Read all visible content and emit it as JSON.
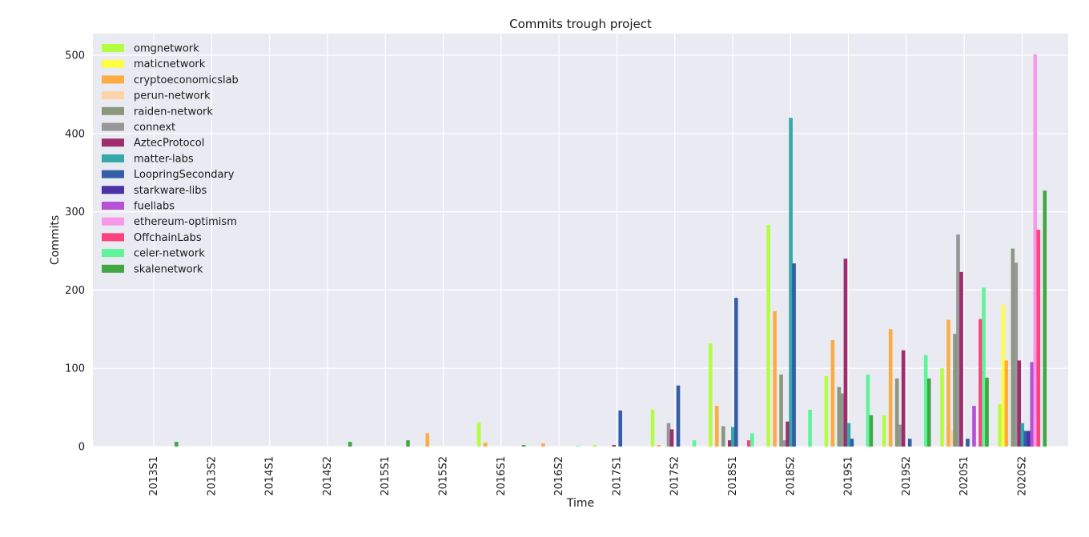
{
  "chart_data": {
    "type": "bar",
    "title": "Commits trough project",
    "xlabel": "Time",
    "ylabel": "Commits",
    "ylim": [
      0,
      525
    ],
    "yticks": [
      0,
      100,
      200,
      300,
      400,
      500
    ],
    "grid": true,
    "legend_position": "top-left",
    "categories": [
      "2013S1",
      "2013S2",
      "2014S1",
      "2014S2",
      "2015S1",
      "2015S2",
      "2016S1",
      "2016S2",
      "2017S1",
      "2017S2",
      "2018S1",
      "2018S2",
      "2019S1",
      "2019S2",
      "2020S1",
      "2020S2"
    ],
    "series": [
      {
        "name": "omgnetwork",
        "color": "#adff2f",
        "values": [
          0,
          0,
          0,
          0,
          0,
          0,
          31,
          0,
          2,
          47,
          132,
          283,
          90,
          40,
          100,
          54
        ]
      },
      {
        "name": "maticnetwork",
        "color": "#ffff33",
        "values": [
          0,
          0,
          0,
          0,
          0,
          0,
          0,
          0,
          0,
          0,
          0,
          0,
          0,
          0,
          0,
          181
        ]
      },
      {
        "name": "cryptoeconomicslab",
        "color": "#ffa530",
        "values": [
          0,
          0,
          0,
          0,
          0,
          17,
          5,
          4,
          0,
          2,
          52,
          173,
          136,
          150,
          162,
          110
        ]
      },
      {
        "name": "perun-network",
        "color": "#ffd1a0",
        "values": [
          0,
          0,
          0,
          0,
          0,
          0,
          0,
          0,
          0,
          0,
          0,
          0,
          0,
          0,
          20,
          0
        ]
      },
      {
        "name": "raiden-network",
        "color": "#809070",
        "values": [
          0,
          0,
          0,
          0,
          0,
          0,
          0,
          0,
          0,
          0,
          26,
          92,
          76,
          87,
          144,
          253
        ]
      },
      {
        "name": "connext",
        "color": "#8e8e8e",
        "values": [
          0,
          0,
          0,
          0,
          0,
          0,
          0,
          0,
          0,
          30,
          0,
          8,
          68,
          28,
          271,
          235
        ]
      },
      {
        "name": "AztecProtocol",
        "color": "#97185e",
        "values": [
          0,
          0,
          0,
          0,
          0,
          0,
          0,
          0,
          2,
          22,
          8,
          32,
          240,
          123,
          223,
          110
        ]
      },
      {
        "name": "matter-labs",
        "color": "#20a0a0",
        "values": [
          0,
          0,
          0,
          0,
          0,
          0,
          0,
          0,
          0,
          0,
          25,
          420,
          30,
          0,
          0,
          30
        ]
      },
      {
        "name": "LoopringSecondary",
        "color": "#2050a0",
        "values": [
          0,
          0,
          0,
          0,
          0,
          0,
          0,
          0,
          46,
          78,
          190,
          234,
          10,
          10,
          10,
          20
        ]
      },
      {
        "name": "starkware-libs",
        "color": "#3a1f9e",
        "values": [
          0,
          0,
          0,
          0,
          0,
          0,
          0,
          0,
          0,
          0,
          0,
          0,
          0,
          0,
          0,
          20
        ]
      },
      {
        "name": "fuellabs",
        "color": "#b040d0",
        "values": [
          0,
          0,
          0,
          0,
          0,
          0,
          0,
          0,
          0,
          0,
          0,
          0,
          0,
          0,
          52,
          108
        ]
      },
      {
        "name": "ethereum-optimism",
        "color": "#f790e8",
        "values": [
          0,
          0,
          0,
          0,
          0,
          0,
          0,
          0,
          0,
          0,
          0,
          0,
          0,
          0,
          0,
          501
        ]
      },
      {
        "name": "OffchainLabs",
        "color": "#ff3070",
        "values": [
          0,
          0,
          0,
          0,
          0,
          0,
          0,
          0,
          0,
          0,
          8,
          0,
          0,
          0,
          163,
          277
        ]
      },
      {
        "name": "celer-network",
        "color": "#50f590",
        "values": [
          0,
          0,
          0,
          0,
          0,
          0,
          0,
          1,
          0,
          8,
          17,
          47,
          92,
          117,
          203,
          0
        ]
      },
      {
        "name": "skalenetwork",
        "color": "#30a030",
        "values": [
          6,
          0,
          0,
          6,
          8,
          0,
          2,
          0,
          0,
          0,
          0,
          0,
          40,
          87,
          88,
          327
        ]
      }
    ]
  }
}
